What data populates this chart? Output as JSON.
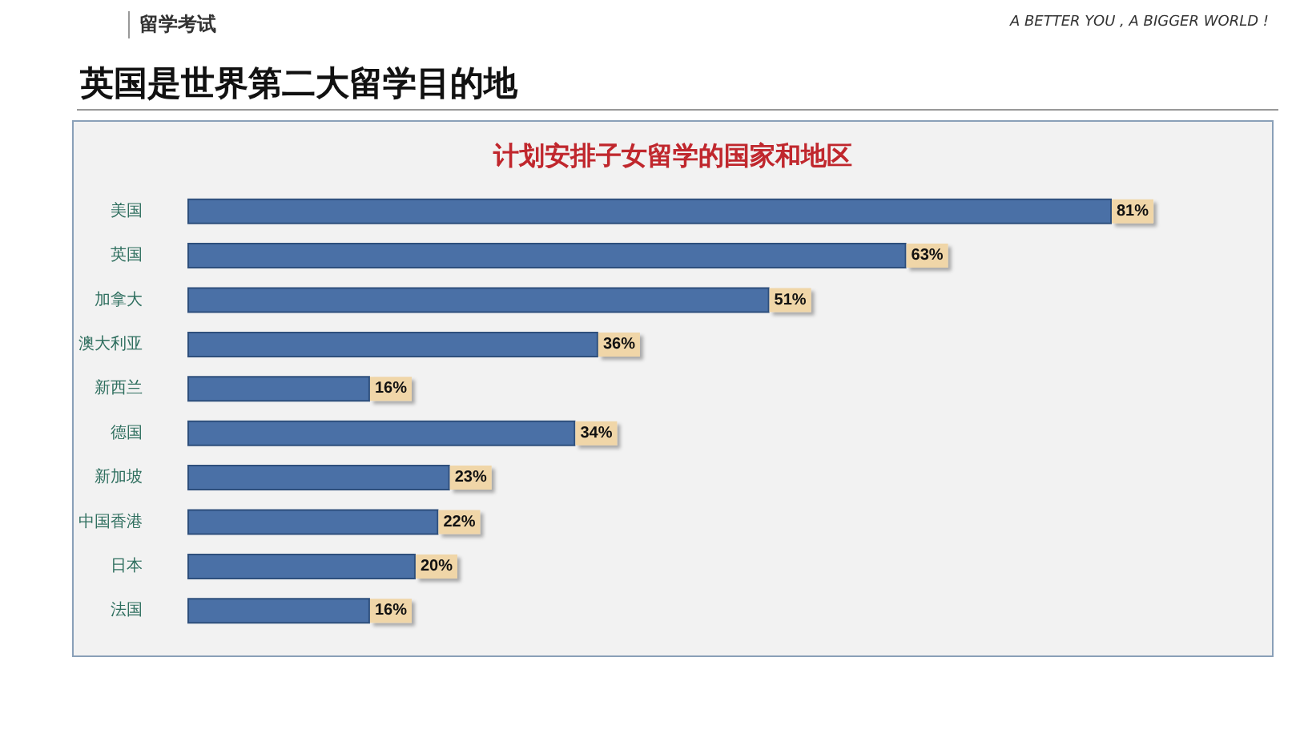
{
  "chart_data": {
    "type": "bar",
    "orientation": "horizontal",
    "title": "英国是世界第二大留学目的地",
    "subtitle": "计划安排子女留学的国家和地区",
    "annotations": [
      "留学考试",
      "A BETTER YOU , A BIGGER WORLD !"
    ],
    "categories": [
      "美国",
      "英国",
      "加拿大",
      "澳大利亚",
      "新西兰",
      "德国",
      "新加坡",
      "中国香港",
      "日本",
      "法国"
    ],
    "values": [
      81,
      63,
      51,
      36,
      16,
      34,
      23,
      22,
      20,
      16
    ],
    "value_labels": [
      "81%",
      "63%",
      "51%",
      "36%",
      "16%",
      "34%",
      "23%",
      "22%",
      "20%",
      "16%"
    ],
    "color": "#4a70a6"
  }
}
